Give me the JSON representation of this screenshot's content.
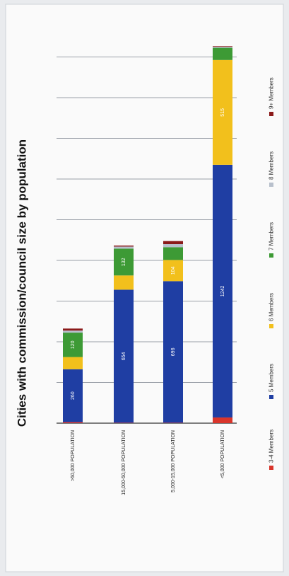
{
  "chart_data": {
    "type": "stacked-bar",
    "title": "Cities with commission/council size by population",
    "categories": [
      ">50,000 POPULATION",
      "15,000-50,000 POPULATION",
      "5,000-15,000 POPULATION",
      "<5,000 POPULATION"
    ],
    "series": [
      {
        "name": "3-4 Members",
        "color": "#d9352b",
        "values": [
          5,
          2,
          2,
          28
        ]
      },
      {
        "name": "5 Members",
        "color": "#1f3ea3",
        "values": [
          260,
          654,
          696,
          1242
        ]
      },
      {
        "name": "6 Members",
        "color": "#f2c01c",
        "values": [
          60,
          70,
          104,
          515
        ]
      },
      {
        "name": "7 Members",
        "color": "#3d9a35",
        "values": [
          120,
          132,
          63,
          60
        ]
      },
      {
        "name": "8 Members",
        "color": "#b8c0cc",
        "values": [
          10,
          10,
          15,
          5
        ]
      },
      {
        "name": "9+ Members",
        "color": "#8b1a1a",
        "values": [
          10,
          5,
          15,
          3
        ]
      }
    ],
    "ylim": [
      0,
      1800
    ],
    "yticks": [
      0,
      200,
      400,
      600,
      800,
      1000,
      1200,
      1400,
      1600,
      1800
    ],
    "grid": true
  }
}
